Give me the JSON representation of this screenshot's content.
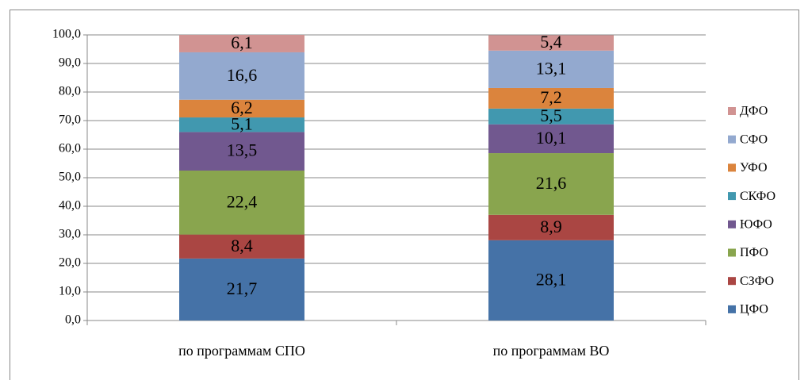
{
  "chart_data": {
    "type": "stacked_bar",
    "categories": [
      "по программам СПО",
      "по программам ВО"
    ],
    "series": [
      {
        "name": "ЦФО",
        "color": "#4572a7",
        "values": [
          21.7,
          28.1
        ],
        "value_labels": [
          "21,7",
          "28,1"
        ]
      },
      {
        "name": "СЗФО",
        "color": "#aa4643",
        "values": [
          8.4,
          8.9
        ],
        "value_labels": [
          "8,4",
          "8,9"
        ]
      },
      {
        "name": "ПФО",
        "color": "#89a54e",
        "values": [
          22.4,
          21.6
        ],
        "value_labels": [
          "22,4",
          "21,6"
        ]
      },
      {
        "name": "ЮФО",
        "color": "#71588f",
        "values": [
          13.5,
          10.1
        ],
        "value_labels": [
          "13,5",
          "10,1"
        ]
      },
      {
        "name": "СКФО",
        "color": "#4198af",
        "values": [
          5.1,
          5.5
        ],
        "value_labels": [
          "5,1",
          "5,5"
        ]
      },
      {
        "name": "УФО",
        "color": "#db843d",
        "values": [
          6.2,
          7.2
        ],
        "value_labels": [
          "6,2",
          "7,2"
        ]
      },
      {
        "name": "СФО",
        "color": "#93a9cf",
        "values": [
          16.6,
          13.1
        ],
        "value_labels": [
          "16,6",
          "13,1"
        ]
      },
      {
        "name": "ДФО",
        "color": "#d19392",
        "values": [
          6.1,
          5.4
        ],
        "value_labels": [
          "6,1",
          "5,4"
        ]
      }
    ],
    "ylim": [
      0,
      100
    ],
    "yticks": [
      {
        "value": 0,
        "label": "0,0"
      },
      {
        "value": 10,
        "label": "10,0"
      },
      {
        "value": 20,
        "label": "20,0"
      },
      {
        "value": 30,
        "label": "30,0"
      },
      {
        "value": 40,
        "label": "40,0"
      },
      {
        "value": 50,
        "label": "50,0"
      },
      {
        "value": 60,
        "label": "60,0"
      },
      {
        "value": 70,
        "label": "70,0"
      },
      {
        "value": 80,
        "label": "80,0"
      },
      {
        "value": 90,
        "label": "90,0"
      },
      {
        "value": 100,
        "label": "100,0"
      }
    ],
    "grid": true,
    "legend": "right"
  }
}
